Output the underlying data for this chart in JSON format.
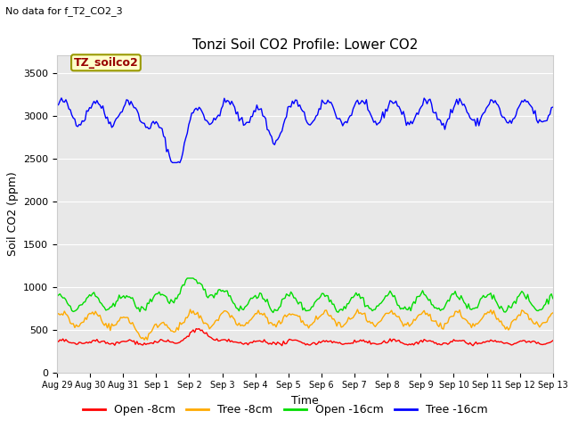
{
  "title": "Tonzi Soil CO2 Profile: Lower CO2",
  "subtitle": "No data for f_T2_CO2_3",
  "ylabel": "Soil CO2 (ppm)",
  "xlabel": "Time",
  "ylim": [
    0,
    3700
  ],
  "yticks": [
    0,
    500,
    1000,
    1500,
    2000,
    2500,
    3000,
    3500
  ],
  "legend_labels": [
    "Open -8cm",
    "Tree -8cm",
    "Open -16cm",
    "Tree -16cm"
  ],
  "legend_colors": [
    "#ff0000",
    "#ffaa00",
    "#00dd00",
    "#0000ff"
  ],
  "annotation_label": "TZ_soilco2",
  "annotation_color": "#990000",
  "annotation_bg": "#ffffcc",
  "annotation_edge": "#999900",
  "bg_color": "#e8e8e8",
  "n_points": 336,
  "xticklabels": [
    "Aug 29",
    "Aug 30",
    "Aug 31",
    "Sep 1",
    "Sep 2",
    "Sep 3",
    "Sep 4",
    "Sep 5",
    "Sep 6",
    "Sep 7",
    "Sep 8",
    "Sep 9",
    "Sep 10",
    "Sep 11",
    "Sep 12",
    "Sep 13"
  ],
  "title_fontsize": 11,
  "subtitle_fontsize": 8,
  "tick_fontsize": 8,
  "ylabel_fontsize": 9,
  "xlabel_fontsize": 9,
  "annot_fontsize": 9,
  "legend_fontsize": 9
}
